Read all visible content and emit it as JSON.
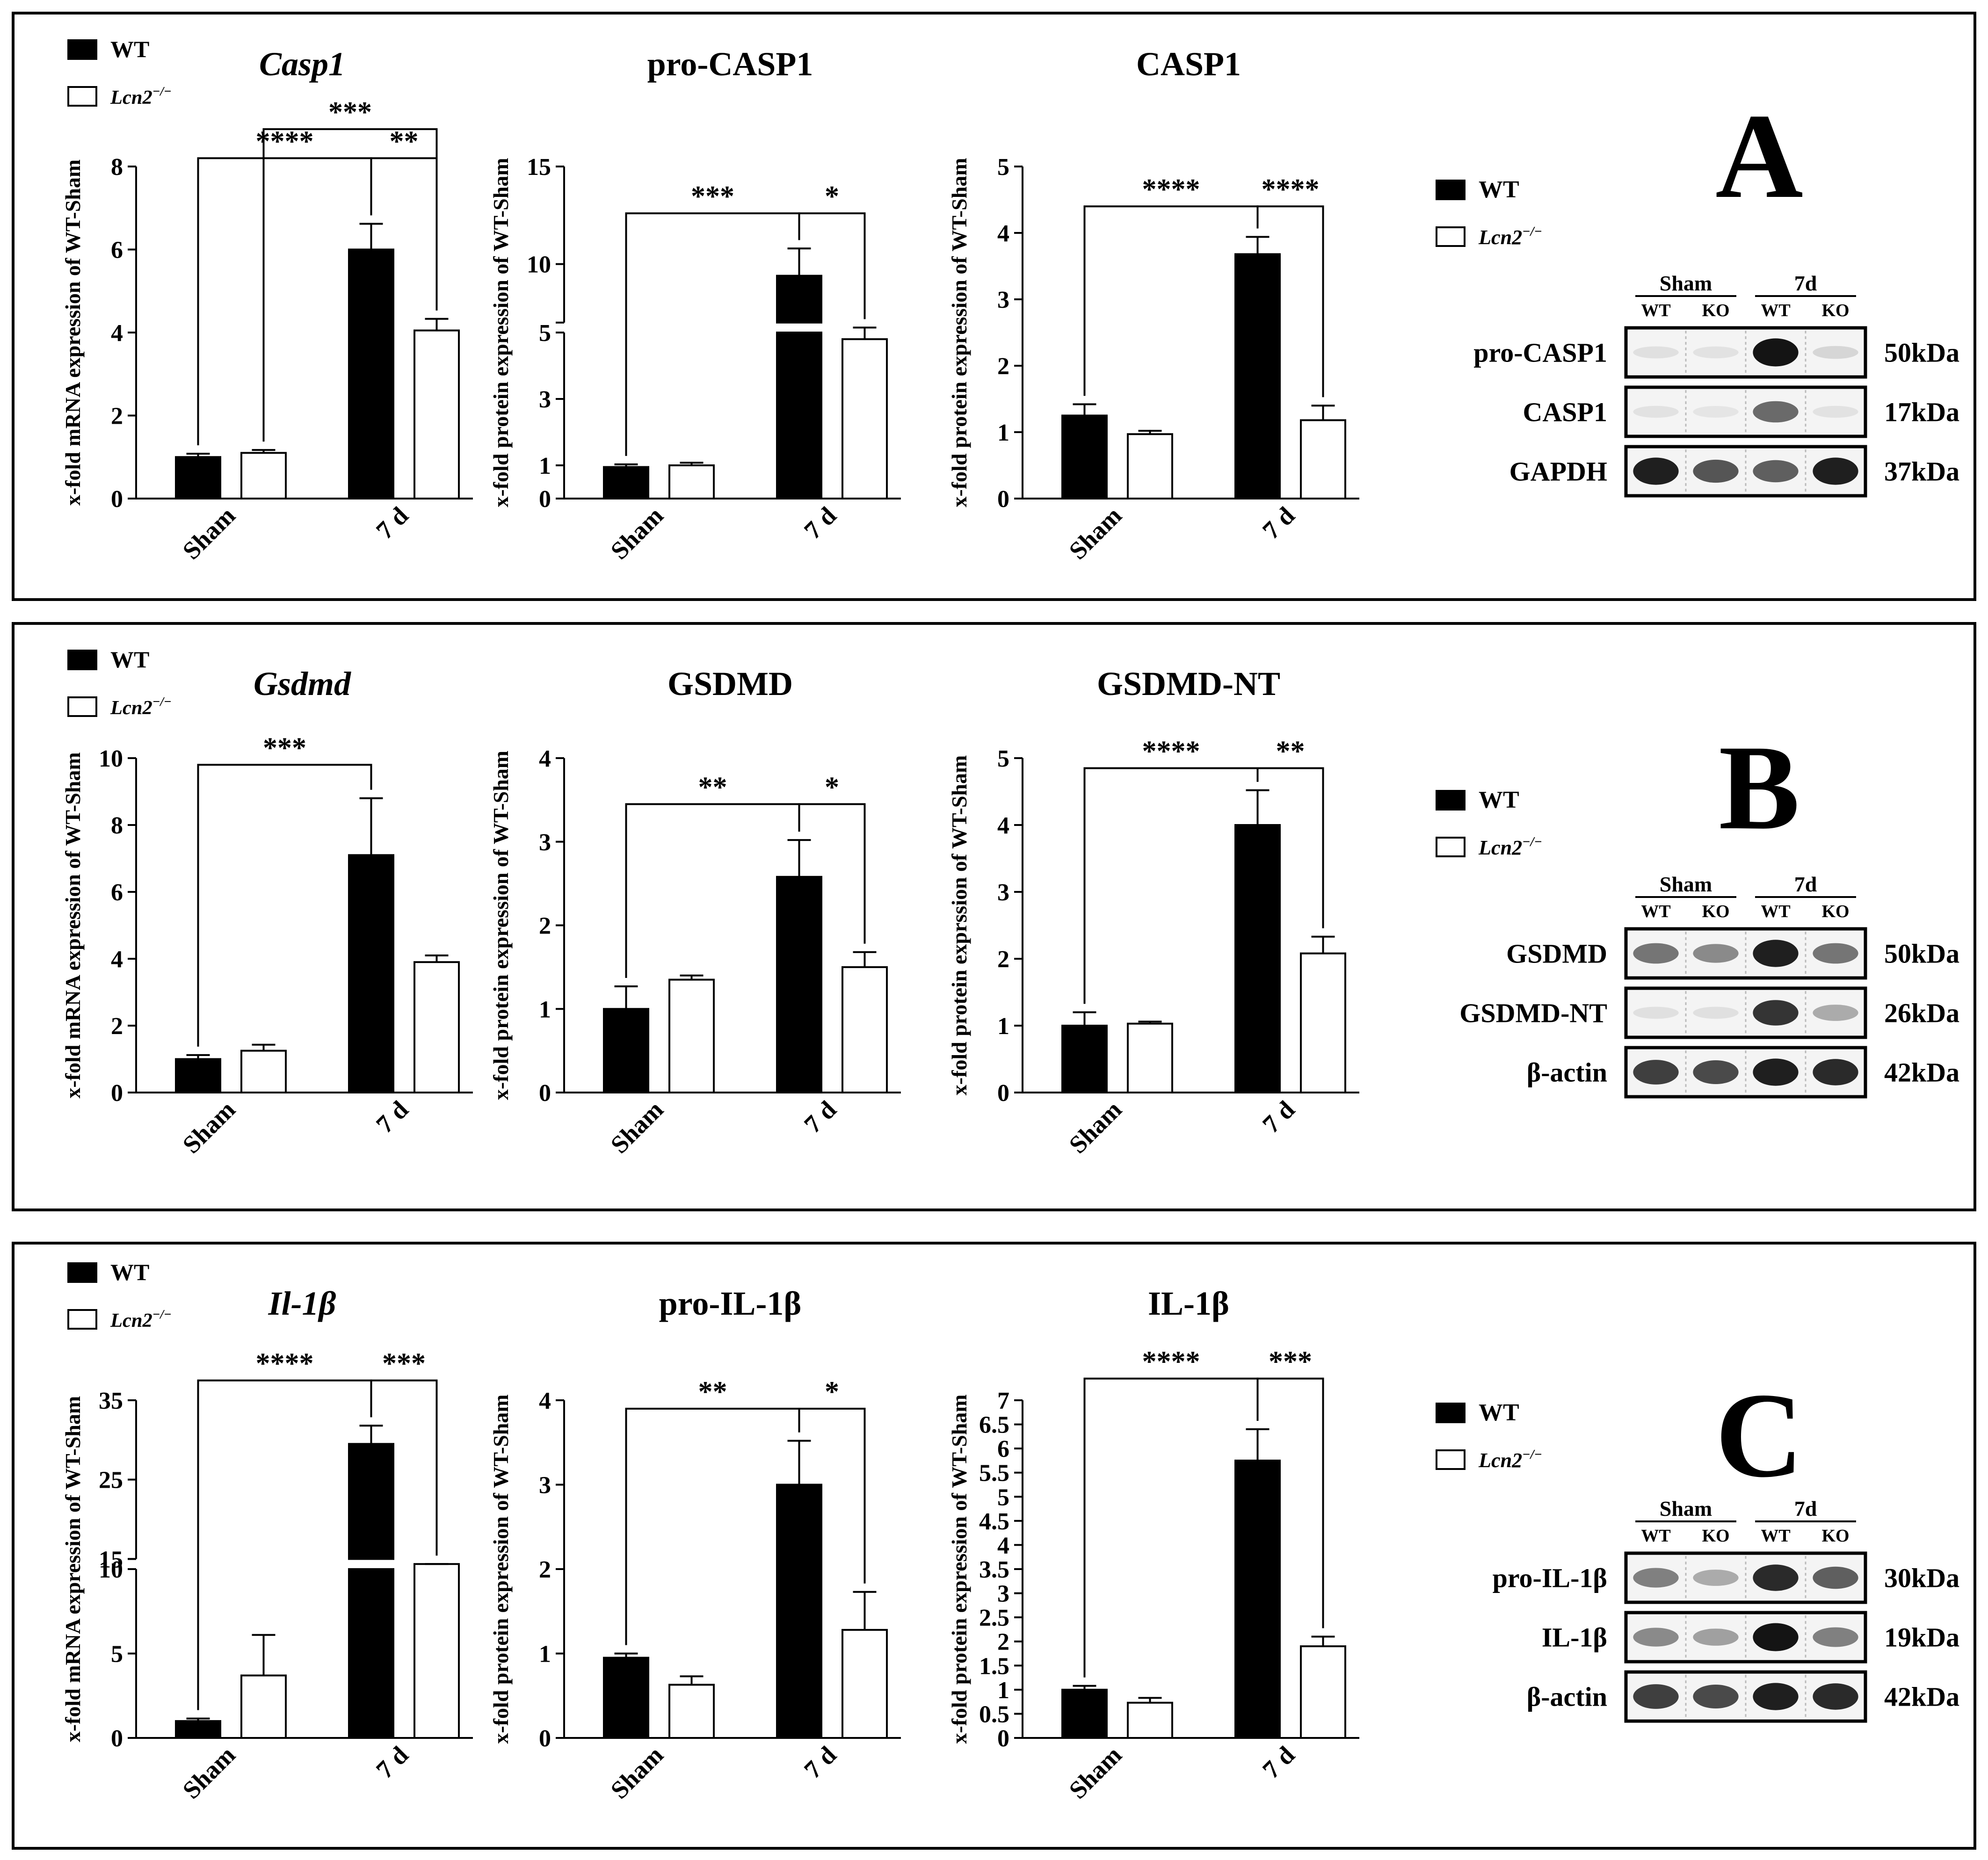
{
  "figure": {
    "legend": {
      "wt_label": "WT",
      "ko_label": "Lcn2",
      "ko_superscript": "−/−"
    },
    "colors": {
      "wt_fill": "#000000",
      "ko_fill": "#ffffff",
      "stroke": "#000000"
    },
    "x_categories": [
      "Sham",
      "7 d"
    ]
  },
  "panels": [
    {
      "letter": "A",
      "charts": [
        {
          "title": "Casp1",
          "title_italic": true,
          "ylabel": "x-fold mRNA expression of WT-Sham"
        },
        {
          "title": "pro-CASP1",
          "title_italic": false,
          "ylabel": "x-fold protein expression of WT-Sham"
        },
        {
          "title": "CASP1",
          "title_italic": false,
          "ylabel": "x-fold protein expression of WT-Sham"
        }
      ],
      "blot": {
        "headers": {
          "group1": "Sham",
          "group2": "7d",
          "lanes": [
            "WT",
            "KO",
            "WT",
            "KO"
          ]
        },
        "rows": [
          {
            "label": "pro-CASP1",
            "kda": "50kDa",
            "bands": [
              0.05,
              0.04,
              1.0,
              0.1
            ]
          },
          {
            "label": "CASP1",
            "kda": "17kDa",
            "bands": [
              0.04,
              0.03,
              0.6,
              0.04
            ]
          },
          {
            "label": "GAPDH",
            "kda": "37kDa",
            "bands": [
              0.95,
              0.7,
              0.65,
              0.95
            ]
          }
        ]
      }
    },
    {
      "letter": "B",
      "charts": [
        {
          "title": "Gsdmd",
          "title_italic": true,
          "ylabel": "x-fold mRNA expression of WT-Sham"
        },
        {
          "title": "GSDMD",
          "title_italic": false,
          "ylabel": "x-fold protein expression of WT-Sham"
        },
        {
          "title": "GSDMD-NT",
          "title_italic": false,
          "ylabel": "x-fold protein exprssion of WT-Sham"
        }
      ],
      "blot": {
        "headers": {
          "group1": "Sham",
          "group2": "7d",
          "lanes": [
            "WT",
            "KO",
            "WT",
            "KO"
          ]
        },
        "rows": [
          {
            "label": "GSDMD",
            "kda": "50kDa",
            "bands": [
              0.55,
              0.45,
              0.95,
              0.55
            ]
          },
          {
            "label": "GSDMD-NT",
            "kda": "26kDa",
            "bands": [
              0.05,
              0.05,
              0.85,
              0.3
            ]
          },
          {
            "label": "β-actin",
            "kda": "42kDa",
            "bands": [
              0.8,
              0.75,
              0.95,
              0.9
            ]
          }
        ]
      }
    },
    {
      "letter": "C",
      "charts": [
        {
          "title": "Il-1β",
          "title_italic": true,
          "ylabel": "x-fold mRNA expression of WT-Sham"
        },
        {
          "title": "pro-IL-1β",
          "title_italic": false,
          "ylabel": "x-fold protein expression of WT-Sham"
        },
        {
          "title": "IL-1β",
          "title_italic": false,
          "ylabel": "x-fold protein expression of WT-Sham"
        }
      ],
      "blot": {
        "headers": {
          "group1": "Sham",
          "group2": "7d",
          "lanes": [
            "WT",
            "KO",
            "WT",
            "KO"
          ]
        },
        "rows": [
          {
            "label": "pro-IL-1β",
            "kda": "30kDa",
            "bands": [
              0.5,
              0.3,
              0.9,
              0.65
            ]
          },
          {
            "label": "IL-1β",
            "kda": "19kDa",
            "bands": [
              0.45,
              0.35,
              1.0,
              0.5
            ]
          },
          {
            "label": "β-actin",
            "kda": "42kDa",
            "bands": [
              0.8,
              0.75,
              0.95,
              0.9
            ]
          }
        ]
      }
    }
  ],
  "chart_data": [
    {
      "type": "bar",
      "title": "Casp1",
      "xlabel": "",
      "ylabel": "x-fold mRNA expression of WT-Sham",
      "categories": [
        "Sham",
        "7 d"
      ],
      "ylim": [
        0,
        8
      ],
      "yticks": [
        0,
        2,
        4,
        6,
        8
      ],
      "ytick_labels": [
        "0",
        "2",
        "4",
        "6",
        "8"
      ],
      "series": [
        {
          "name": "WT",
          "values": [
            1.0,
            6.0
          ],
          "errors": [
            0.08,
            0.62
          ]
        },
        {
          "name": "Lcn2−/−",
          "values": [
            1.1,
            4.05
          ],
          "errors": [
            0.07,
            0.28
          ]
        }
      ],
      "annotations": [
        {
          "from": "Sham-WT",
          "to": "7 d-WT",
          "label": "****",
          "level": 8.2
        },
        {
          "from": "7 d-WT",
          "to": "7 d-Lcn2−/−",
          "label": "**",
          "level": 8.2
        },
        {
          "from": "Sham-Lcn2−/−",
          "to": "7 d-Lcn2−/−",
          "label": "***",
          "level": 8.9
        }
      ]
    },
    {
      "type": "bar",
      "title": "pro-CASP1",
      "xlabel": "",
      "ylabel": "x-fold protein expression of WT-Sham",
      "categories": [
        "Sham",
        "7 d"
      ],
      "ylim": [
        0,
        15
      ],
      "yticks": [
        0,
        1,
        3,
        5,
        10,
        15
      ],
      "ytick_labels": [
        "0",
        "1",
        "3",
        "5",
        "10",
        "15"
      ],
      "axis_break": [
        5,
        7
      ],
      "series": [
        {
          "name": "WT",
          "values": [
            0.95,
            9.4
          ],
          "errors": [
            0.08,
            1.4
          ]
        },
        {
          "name": "Lcn2−/−",
          "values": [
            1.0,
            4.8
          ],
          "errors": [
            0.08,
            0.4
          ]
        }
      ],
      "annotations": [
        {
          "from": "Sham-WT",
          "to": "7 d-WT",
          "label": "***",
          "level": 12.6
        },
        {
          "from": "7 d-WT",
          "to": "7 d-Lcn2−/−",
          "label": "*",
          "level": 12.6
        }
      ]
    },
    {
      "type": "bar",
      "title": "CASP1",
      "xlabel": "",
      "ylabel": "x-fold protein expression of WT-Sham",
      "categories": [
        "Sham",
        "7 d"
      ],
      "ylim": [
        0,
        5
      ],
      "yticks": [
        0,
        1,
        2,
        3,
        4,
        5
      ],
      "ytick_labels": [
        "0",
        "1",
        "2",
        "3",
        "4",
        "5"
      ],
      "series": [
        {
          "name": "WT",
          "values": [
            1.25,
            3.68
          ],
          "errors": [
            0.17,
            0.26
          ]
        },
        {
          "name": "Lcn2−/−",
          "values": [
            0.97,
            1.18
          ],
          "errors": [
            0.05,
            0.22
          ]
        }
      ],
      "annotations": [
        {
          "from": "Sham-WT",
          "to": "7 d-WT",
          "label": "****",
          "level": 4.4
        },
        {
          "from": "7 d-WT",
          "to": "7 d-Lcn2−/−",
          "label": "****",
          "level": 4.4
        }
      ]
    },
    {
      "type": "bar",
      "title": "Gsdmd",
      "xlabel": "",
      "ylabel": "x-fold mRNA expression of WT-Sham",
      "categories": [
        "Sham",
        "7 d"
      ],
      "ylim": [
        0,
        10
      ],
      "yticks": [
        0,
        2,
        4,
        6,
        8,
        10
      ],
      "ytick_labels": [
        "0",
        "2",
        "4",
        "6",
        "8",
        "10"
      ],
      "series": [
        {
          "name": "WT",
          "values": [
            1.0,
            7.1
          ],
          "errors": [
            0.12,
            1.7
          ]
        },
        {
          "name": "Lcn2−/−",
          "values": [
            1.25,
            3.9
          ],
          "errors": [
            0.18,
            0.2
          ]
        }
      ],
      "annotations": [
        {
          "from": "Sham-WT",
          "to": "7 d-WT",
          "label": "***",
          "level": 9.8
        }
      ]
    },
    {
      "type": "bar",
      "title": "GSDMD",
      "xlabel": "",
      "ylabel": "x-fold protein expression of WT-Sham",
      "categories": [
        "Sham",
        "7 d"
      ],
      "ylim": [
        0,
        4
      ],
      "yticks": [
        0,
        1,
        2,
        3,
        4
      ],
      "ytick_labels": [
        "0",
        "1",
        "2",
        "3",
        "4"
      ],
      "series": [
        {
          "name": "WT",
          "values": [
            1.0,
            2.58
          ],
          "errors": [
            0.27,
            0.44
          ]
        },
        {
          "name": "Lcn2−/−",
          "values": [
            1.35,
            1.5
          ],
          "errors": [
            0.05,
            0.18
          ]
        }
      ],
      "annotations": [
        {
          "from": "Sham-WT",
          "to": "7 d-WT",
          "label": "**",
          "level": 3.45
        },
        {
          "from": "7 d-WT",
          "to": "7 d-Lcn2−/−",
          "label": "*",
          "level": 3.45
        }
      ]
    },
    {
      "type": "bar",
      "title": "GSDMD-NT",
      "xlabel": "",
      "ylabel": "x-fold protein exprssion of WT-Sham",
      "categories": [
        "Sham",
        "7 d"
      ],
      "ylim": [
        0,
        5
      ],
      "yticks": [
        0,
        1,
        2,
        3,
        4,
        5
      ],
      "ytick_labels": [
        "0",
        "1",
        "2",
        "3",
        "4",
        "5"
      ],
      "series": [
        {
          "name": "WT",
          "values": [
            1.0,
            4.0
          ],
          "errors": [
            0.2,
            0.52
          ]
        },
        {
          "name": "Lcn2−/−",
          "values": [
            1.03,
            2.08
          ],
          "errors": [
            0.03,
            0.25
          ]
        }
      ],
      "annotations": [
        {
          "from": "Sham-WT",
          "to": "7 d-WT",
          "label": "****",
          "level": 4.85
        },
        {
          "from": "7 d-WT",
          "to": "7 d-Lcn2−/−",
          "label": "**",
          "level": 4.85
        }
      ]
    },
    {
      "type": "bar",
      "title": "Il-1β",
      "xlabel": "",
      "ylabel": "x-fold mRNA expression of WT-Sham",
      "categories": [
        "Sham",
        "7 d"
      ],
      "ylim": [
        0,
        35
      ],
      "yticks": [
        0,
        5,
        10,
        15,
        25,
        35
      ],
      "ytick_labels": [
        "0",
        "5",
        "10",
        "15",
        "25",
        "35"
      ],
      "axis_break": [
        10,
        15
      ],
      "series": [
        {
          "name": "WT",
          "values": [
            1.0,
            29.5
          ],
          "errors": [
            0.15,
            2.3
          ]
        },
        {
          "name": "Lcn2−/−",
          "values": [
            3.7,
            12.8
          ],
          "errors": [
            2.4,
            2.0
          ]
        }
      ],
      "annotations": [
        {
          "from": "Sham-WT",
          "to": "7 d-WT",
          "label": "****",
          "level": 37.5
        },
        {
          "from": "7 d-WT",
          "to": "7 d-Lcn2−/−",
          "label": "***",
          "level": 37.5
        }
      ]
    },
    {
      "type": "bar",
      "title": "pro-IL-1β",
      "xlabel": "",
      "ylabel": "x-fold protein expression of WT-Sham",
      "categories": [
        "Sham",
        "7 d"
      ],
      "ylim": [
        0,
        4
      ],
      "yticks": [
        0,
        1,
        2,
        3,
        4
      ],
      "ytick_labels": [
        "0",
        "1",
        "2",
        "3",
        "4"
      ],
      "series": [
        {
          "name": "WT",
          "values": [
            0.95,
            3.0
          ],
          "errors": [
            0.05,
            0.52
          ]
        },
        {
          "name": "Lcn2−/−",
          "values": [
            0.63,
            1.28
          ],
          "errors": [
            0.1,
            0.45
          ]
        }
      ],
      "annotations": [
        {
          "from": "Sham-WT",
          "to": "7 d-WT",
          "label": "**",
          "level": 3.9
        },
        {
          "from": "7 d-WT",
          "to": "7 d-Lcn2−/−",
          "label": "*",
          "level": 3.9
        }
      ]
    },
    {
      "type": "bar",
      "title": "IL-1β",
      "xlabel": "",
      "ylabel": "x-fold protein expression of WT-Sham",
      "categories": [
        "Sham",
        "7 d"
      ],
      "ylim": [
        0,
        7
      ],
      "yticks": [
        0,
        0.5,
        1,
        1.5,
        2,
        2.5,
        3,
        3.5,
        4,
        4.5,
        5,
        5.5,
        6,
        6.5,
        7
      ],
      "ytick_labels": [
        "0",
        "0.5",
        "1",
        "1.5",
        "2",
        "2.5",
        "3",
        "3.5",
        "4",
        "4.5",
        "5",
        "5.5",
        "6",
        "6.5",
        "7"
      ],
      "series": [
        {
          "name": "WT",
          "values": [
            1.0,
            5.75
          ],
          "errors": [
            0.08,
            0.65
          ]
        },
        {
          "name": "Lcn2−/−",
          "values": [
            0.73,
            1.9
          ],
          "errors": [
            0.1,
            0.2
          ]
        }
      ],
      "annotations": [
        {
          "from": "Sham-WT",
          "to": "7 d-WT",
          "label": "****",
          "level": 7.45
        },
        {
          "from": "7 d-WT",
          "to": "7 d-Lcn2−/−",
          "label": "***",
          "level": 7.45
        }
      ]
    }
  ]
}
